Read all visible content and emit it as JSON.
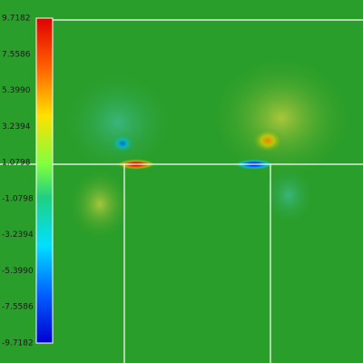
{
  "colorbar": {
    "labels": [
      "9.7182",
      "7.5586",
      "5.3990",
      "3.2394",
      "1.0798",
      "-1.0798",
      "-3.2394",
      "-5.3990",
      "-7.5586",
      "-9.7182"
    ]
  }
}
